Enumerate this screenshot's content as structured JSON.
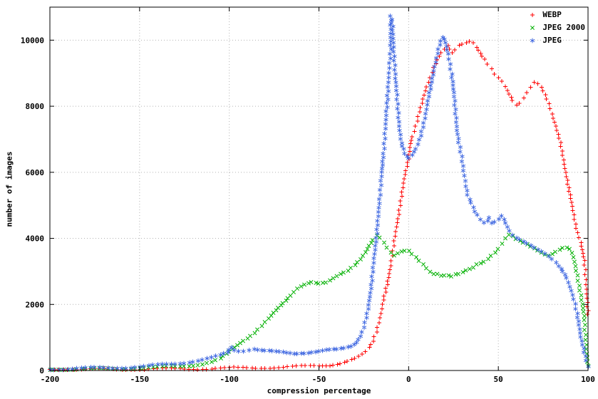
{
  "chart_data": {
    "type": "scatter",
    "title": "",
    "xlabel": "compression percentage",
    "ylabel": "number of images",
    "xlim": [
      -200,
      100
    ],
    "ylim": [
      0,
      11000
    ],
    "xticks": [
      -200,
      -150,
      -100,
      -50,
      0,
      50,
      100
    ],
    "yticks": [
      0,
      2000,
      4000,
      6000,
      8000,
      10000
    ],
    "grid": true,
    "legend_position": "top-right",
    "series": [
      {
        "name": "WEBP",
        "color": "#ff0000",
        "marker": "plus",
        "points": [
          [
            -200,
            30
          ],
          [
            -190,
            30
          ],
          [
            -180,
            35
          ],
          [
            -170,
            35
          ],
          [
            -160,
            40
          ],
          [
            -150,
            40
          ],
          [
            -140,
            45
          ],
          [
            -130,
            50
          ],
          [
            -120,
            55
          ],
          [
            -110,
            60
          ],
          [
            -100,
            70
          ],
          [
            -95,
            75
          ],
          [
            -90,
            80
          ],
          [
            -85,
            85
          ],
          [
            -80,
            90
          ],
          [
            -75,
            95
          ],
          [
            -70,
            100
          ],
          [
            -65,
            110
          ],
          [
            -60,
            120
          ],
          [
            -55,
            135
          ],
          [
            -50,
            150
          ],
          [
            -46,
            165
          ],
          [
            -42,
            185
          ],
          [
            -38,
            220
          ],
          [
            -34,
            270
          ],
          [
            -30,
            340
          ],
          [
            -28,
            400
          ],
          [
            -26,
            470
          ],
          [
            -24,
            560
          ],
          [
            -22,
            700
          ],
          [
            -20,
            900
          ],
          [
            -18,
            1200
          ],
          [
            -16,
            1600
          ],
          [
            -14,
            2100
          ],
          [
            -12,
            2600
          ],
          [
            -10,
            3200
          ],
          [
            -8,
            3900
          ],
          [
            -6,
            4600
          ],
          [
            -4,
            5300
          ],
          [
            -2,
            5900
          ],
          [
            0,
            6400
          ],
          [
            1,
            6900
          ],
          [
            2,
            7100
          ],
          [
            4,
            7400
          ],
          [
            6,
            7800
          ],
          [
            8,
            8200
          ],
          [
            10,
            8600
          ],
          [
            12,
            8900
          ],
          [
            14,
            9200
          ],
          [
            16,
            9400
          ],
          [
            18,
            9600
          ],
          [
            20,
            9700
          ],
          [
            22,
            9800
          ],
          [
            24,
            9600
          ],
          [
            26,
            9700
          ],
          [
            28,
            9850
          ],
          [
            30,
            9900
          ],
          [
            32,
            9950
          ],
          [
            34,
            10000
          ],
          [
            36,
            9950
          ],
          [
            38,
            9800
          ],
          [
            40,
            9600
          ],
          [
            42,
            9400
          ],
          [
            44,
            9250
          ],
          [
            46,
            9100
          ],
          [
            48,
            8950
          ],
          [
            50,
            8850
          ],
          [
            52,
            8750
          ],
          [
            54,
            8600
          ],
          [
            56,
            8400
          ],
          [
            58,
            8200
          ],
          [
            60,
            8050
          ],
          [
            62,
            8100
          ],
          [
            64,
            8250
          ],
          [
            66,
            8400
          ],
          [
            68,
            8550
          ],
          [
            70,
            8700
          ],
          [
            72,
            8650
          ],
          [
            74,
            8550
          ],
          [
            76,
            8350
          ],
          [
            78,
            8100
          ],
          [
            80,
            7800
          ],
          [
            82,
            7400
          ],
          [
            84,
            7000
          ],
          [
            86,
            6500
          ],
          [
            88,
            5900
          ],
          [
            90,
            5300
          ],
          [
            92,
            4700
          ],
          [
            94,
            4200
          ],
          [
            96,
            3900
          ],
          [
            98,
            3300
          ],
          [
            99,
            2600
          ],
          [
            100,
            1700
          ]
        ]
      },
      {
        "name": "JPEG 2000",
        "color": "#00b000",
        "marker": "cross",
        "points": [
          [
            -200,
            25
          ],
          [
            -190,
            30
          ],
          [
            -180,
            40
          ],
          [
            -170,
            50
          ],
          [
            -160,
            60
          ],
          [
            -150,
            75
          ],
          [
            -140,
            95
          ],
          [
            -130,
            125
          ],
          [
            -120,
            170
          ],
          [
            -115,
            210
          ],
          [
            -110,
            260
          ],
          [
            -105,
            340
          ],
          [
            -100,
            550
          ],
          [
            -97,
            700
          ],
          [
            -94,
            850
          ],
          [
            -90,
            1000
          ],
          [
            -86,
            1150
          ],
          [
            -82,
            1350
          ],
          [
            -78,
            1550
          ],
          [
            -74,
            1800
          ],
          [
            -70,
            2050
          ],
          [
            -66,
            2300
          ],
          [
            -62,
            2500
          ],
          [
            -58,
            2600
          ],
          [
            -54,
            2650
          ],
          [
            -50,
            2600
          ],
          [
            -46,
            2650
          ],
          [
            -42,
            2800
          ],
          [
            -38,
            2950
          ],
          [
            -34,
            3050
          ],
          [
            -30,
            3200
          ],
          [
            -27,
            3350
          ],
          [
            -24,
            3550
          ],
          [
            -22,
            3750
          ],
          [
            -20,
            3950
          ],
          [
            -18,
            4100
          ],
          [
            -16,
            4050
          ],
          [
            -14,
            3900
          ],
          [
            -12,
            3750
          ],
          [
            -10,
            3600
          ],
          [
            -8,
            3500
          ],
          [
            -6,
            3550
          ],
          [
            -4,
            3600
          ],
          [
            -2,
            3600
          ],
          [
            0,
            3600
          ],
          [
            2,
            3500
          ],
          [
            4,
            3400
          ],
          [
            6,
            3300
          ],
          [
            8,
            3200
          ],
          [
            10,
            3100
          ],
          [
            12,
            3000
          ],
          [
            14,
            2950
          ],
          [
            16,
            2950
          ],
          [
            18,
            2900
          ],
          [
            20,
            2900
          ],
          [
            22,
            2900
          ],
          [
            24,
            2850
          ],
          [
            26,
            2900
          ],
          [
            28,
            2900
          ],
          [
            30,
            2950
          ],
          [
            32,
            3000
          ],
          [
            34,
            3050
          ],
          [
            36,
            3100
          ],
          [
            38,
            3200
          ],
          [
            40,
            3250
          ],
          [
            42,
            3300
          ],
          [
            44,
            3400
          ],
          [
            46,
            3500
          ],
          [
            48,
            3600
          ],
          [
            50,
            3700
          ],
          [
            52,
            3850
          ],
          [
            54,
            4000
          ],
          [
            56,
            4100
          ],
          [
            58,
            4050
          ],
          [
            60,
            3950
          ],
          [
            62,
            3900
          ],
          [
            64,
            3850
          ],
          [
            66,
            3800
          ],
          [
            68,
            3750
          ],
          [
            70,
            3700
          ],
          [
            72,
            3650
          ],
          [
            74,
            3600
          ],
          [
            76,
            3550
          ],
          [
            78,
            3500
          ],
          [
            80,
            3550
          ],
          [
            82,
            3600
          ],
          [
            84,
            3650
          ],
          [
            86,
            3700
          ],
          [
            88,
            3700
          ],
          [
            90,
            3650
          ],
          [
            92,
            3400
          ],
          [
            94,
            2900
          ],
          [
            95,
            2600
          ],
          [
            96,
            2300
          ],
          [
            97,
            2000
          ],
          [
            98,
            1500
          ],
          [
            99,
            800
          ],
          [
            100,
            150
          ]
        ]
      },
      {
        "name": "JPEG",
        "color": "#4169e1",
        "marker": "star",
        "points": [
          [
            -200,
            40
          ],
          [
            -190,
            50
          ],
          [
            -180,
            60
          ],
          [
            -170,
            75
          ],
          [
            -160,
            90
          ],
          [
            -150,
            115
          ],
          [
            -140,
            150
          ],
          [
            -130,
            200
          ],
          [
            -125,
            240
          ],
          [
            -120,
            290
          ],
          [
            -115,
            340
          ],
          [
            -110,
            390
          ],
          [
            -105,
            450
          ],
          [
            -101,
            520
          ],
          [
            -99,
            700
          ],
          [
            -97,
            620
          ],
          [
            -95,
            600
          ],
          [
            -92,
            610
          ],
          [
            -89,
            640
          ],
          [
            -86,
            680
          ],
          [
            -84,
            650
          ],
          [
            -80,
            600
          ],
          [
            -76,
            570
          ],
          [
            -72,
            545
          ],
          [
            -68,
            525
          ],
          [
            -64,
            520
          ],
          [
            -60,
            540
          ],
          [
            -56,
            560
          ],
          [
            -52,
            575
          ],
          [
            -48,
            590
          ],
          [
            -44,
            605
          ],
          [
            -40,
            625
          ],
          [
            -36,
            680
          ],
          [
            -32,
            760
          ],
          [
            -29,
            880
          ],
          [
            -27,
            1050
          ],
          [
            -25,
            1300
          ],
          [
            -23,
            1700
          ],
          [
            -22,
            2100
          ],
          [
            -21,
            2500
          ],
          [
            -20,
            3000
          ],
          [
            -19,
            3500
          ],
          [
            -18,
            4000
          ],
          [
            -17,
            4700
          ],
          [
            -16,
            5300
          ],
          [
            -15,
            6000
          ],
          [
            -14,
            6600
          ],
          [
            -13,
            7300
          ],
          [
            -12,
            8100
          ],
          [
            -11,
            9000
          ],
          [
            -10,
            9700
          ],
          [
            -10,
            10750
          ],
          [
            -9,
            10400
          ],
          [
            -8,
            9400
          ],
          [
            -7,
            8600
          ],
          [
            -6,
            7900
          ],
          [
            -5,
            7300
          ],
          [
            -4,
            6900
          ],
          [
            -3,
            6700
          ],
          [
            -2,
            6550
          ],
          [
            -1,
            6450
          ],
          [
            0,
            6400
          ],
          [
            2,
            6500
          ],
          [
            4,
            6700
          ],
          [
            6,
            7000
          ],
          [
            8,
            7400
          ],
          [
            10,
            7900
          ],
          [
            12,
            8500
          ],
          [
            14,
            9100
          ],
          [
            16,
            9600
          ],
          [
            18,
            9950
          ],
          [
            19,
            10050
          ],
          [
            20,
            10000
          ],
          [
            21,
            9800
          ],
          [
            22,
            9600
          ],
          [
            23,
            9300
          ],
          [
            24,
            9000
          ],
          [
            25,
            8500
          ],
          [
            26,
            7900
          ],
          [
            27,
            7300
          ],
          [
            28,
            6900
          ],
          [
            29,
            6600
          ],
          [
            30,
            6300
          ],
          [
            31,
            5900
          ],
          [
            32,
            5600
          ],
          [
            33,
            5350
          ],
          [
            34,
            5200
          ],
          [
            35,
            5100
          ],
          [
            36,
            4950
          ],
          [
            37,
            4800
          ],
          [
            38,
            4700
          ],
          [
            40,
            4550
          ],
          [
            42,
            4450
          ],
          [
            44,
            4500
          ],
          [
            45,
            4600
          ],
          [
            46,
            4450
          ],
          [
            48,
            4500
          ],
          [
            50,
            4600
          ],
          [
            52,
            4700
          ],
          [
            54,
            4500
          ],
          [
            56,
            4250
          ],
          [
            58,
            4100
          ],
          [
            60,
            4000
          ],
          [
            62,
            3950
          ],
          [
            64,
            3880
          ],
          [
            66,
            3820
          ],
          [
            68,
            3760
          ],
          [
            70,
            3700
          ],
          [
            72,
            3650
          ],
          [
            74,
            3600
          ],
          [
            76,
            3550
          ],
          [
            78,
            3480
          ],
          [
            80,
            3400
          ],
          [
            82,
            3300
          ],
          [
            84,
            3180
          ],
          [
            86,
            3000
          ],
          [
            88,
            2780
          ],
          [
            90,
            2500
          ],
          [
            92,
            2150
          ],
          [
            94,
            1750
          ],
          [
            95,
            1400
          ],
          [
            96,
            1000
          ],
          [
            97,
            750
          ],
          [
            98,
            520
          ],
          [
            99,
            300
          ],
          [
            100,
            120
          ]
        ]
      }
    ],
    "style": {
      "grid_color": "#b3b3b3",
      "border_color": "#000000",
      "tick_label_color": "#000000"
    }
  }
}
